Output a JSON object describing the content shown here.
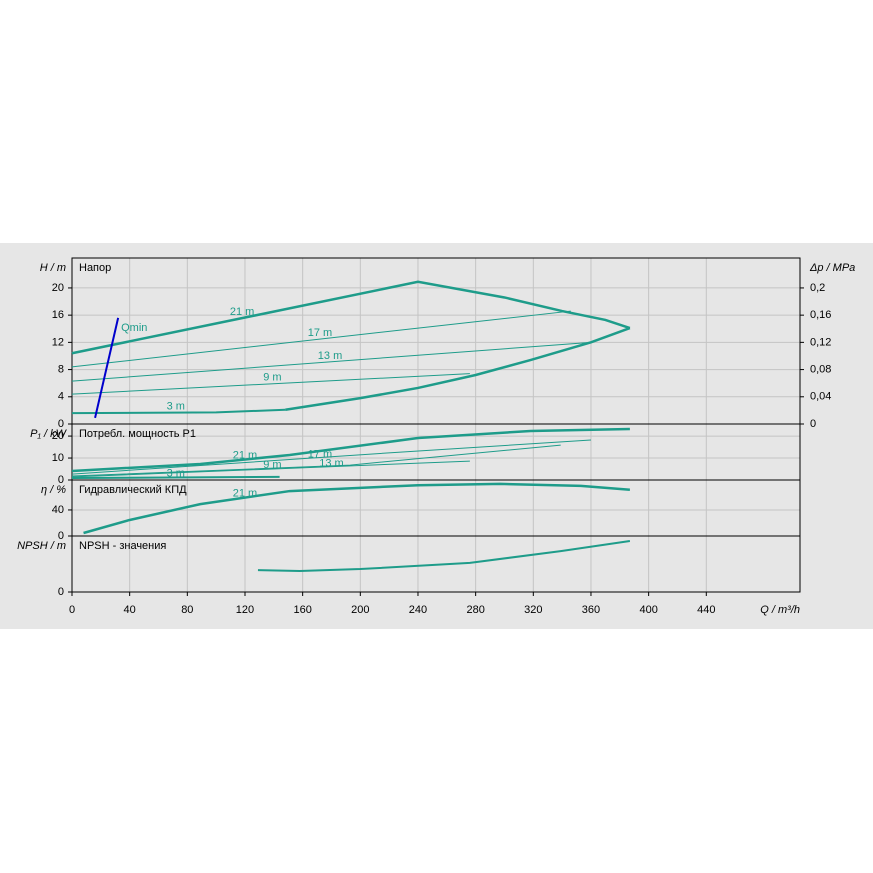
{
  "chart_data": [
    {
      "type": "line",
      "title": "Напор",
      "ylabel": "H / m",
      "y2label": "Δp / MPa",
      "color": "#1e9c8a",
      "grid": true,
      "ylim": [
        0,
        24.4
      ],
      "yticks": [
        0,
        4,
        8,
        12,
        16,
        20
      ],
      "y2lim": [
        0,
        0.244
      ],
      "y2ticks": [
        0,
        {
          "value": 0.04,
          "label": "0,04"
        },
        {
          "value": 0.08,
          "label": "0,08"
        },
        {
          "value": 0.12,
          "label": "0,12"
        },
        {
          "value": 0.16,
          "label": "0,16"
        },
        {
          "value": 0.2,
          "label": "0,2"
        }
      ],
      "series": [
        {
          "name": "21 m",
          "linewidth": 2.5,
          "x": [
            0,
            240,
            300,
            340,
            370,
            387
          ],
          "values": [
            10.4,
            20.9,
            18.6,
            16.6,
            15.3,
            14.1
          ]
        },
        {
          "name": "17 m",
          "linewidth": 1,
          "x": [
            0,
            346
          ],
          "values": [
            8.4,
            16.6
          ]
        },
        {
          "name": "13 m",
          "linewidth": 1,
          "x": [
            0,
            360
          ],
          "values": [
            6.3,
            12
          ]
        },
        {
          "name": "9 m",
          "linewidth": 1,
          "x": [
            0,
            276
          ],
          "values": [
            4.4,
            7.4
          ]
        },
        {
          "name": "3 m",
          "linewidth": 2,
          "x": [
            0,
            100,
            148
          ],
          "values": [
            1.6,
            1.7,
            2.1
          ]
        },
        {
          "linewidth": 2.5,
          "x": [
            148,
            200,
            240,
            280,
            318,
            360,
            387
          ],
          "values": [
            2.1,
            3.8,
            5.3,
            7.2,
            9.4,
            12,
            14.1
          ]
        },
        {
          "name": "Qmin",
          "linewidth": 2,
          "color": "#0000cc",
          "x": [
            16,
            32
          ],
          "values": [
            0.9,
            15.6
          ]
        }
      ]
    },
    {
      "type": "line",
      "title": "Потребл. мощность P1",
      "ylabel": "P₁ / kW",
      "color": "#1e9c8a",
      "grid": true,
      "ylim": [
        0,
        25.5
      ],
      "yticks": [
        0,
        10,
        20
      ],
      "series": [
        {
          "name": "21 m",
          "linewidth": 2.5,
          "x": [
            0,
            89,
            151,
            240,
            318,
            387
          ],
          "values": [
            4.1,
            7.3,
            11.4,
            19.1,
            22.3,
            23.2
          ]
        },
        {
          "name": "17 m",
          "linewidth": 1,
          "x": [
            0,
            228,
            360
          ],
          "values": [
            2.7,
            12.7,
            18.2
          ]
        },
        {
          "name": "13 m",
          "linewidth": 1,
          "x": [
            0,
            193,
            339
          ],
          "values": [
            1.8,
            6.8,
            15.9
          ]
        },
        {
          "name": "9 m",
          "linewidth": 1,
          "x": [
            0,
            276
          ],
          "values": [
            1.4,
            8.6
          ]
        },
        {
          "name": "3 m",
          "linewidth": 2,
          "x": [
            0,
            144
          ],
          "values": [
            0.9,
            1.4
          ]
        }
      ]
    },
    {
      "type": "line",
      "title": "Гидравлический КПД",
      "ylabel": "η / %",
      "color": "#1e9c8a",
      "grid": true,
      "ylim": [
        0,
        86
      ],
      "yticks": [
        0,
        40
      ],
      "series": [
        {
          "name": "21 m",
          "linewidth": 2.5,
          "x": [
            8,
            40,
            89,
            151,
            240,
            297,
            353,
            387
          ],
          "values": [
            4.6,
            24.6,
            49,
            69,
            78,
            80,
            77,
            71
          ]
        }
      ]
    },
    {
      "type": "line",
      "title": "NPSH - значения",
      "ylabel": "NPSH / m",
      "xlabel": "Q / m³/h",
      "color": "#1e9c8a",
      "grid": true,
      "ylim": [
        0,
        10
      ],
      "yticks": [
        0
      ],
      "xlim": [
        0,
        505
      ],
      "xticks": [
        0,
        40,
        80,
        120,
        160,
        200,
        240,
        280,
        320,
        360,
        400,
        440
      ],
      "series": [
        {
          "linewidth": 2,
          "x": [
            129,
            158,
            200,
            276,
            339,
            387
          ],
          "values": [
            3.9,
            3.75,
            4.1,
            5.2,
            7.3,
            9.1
          ]
        }
      ]
    }
  ]
}
